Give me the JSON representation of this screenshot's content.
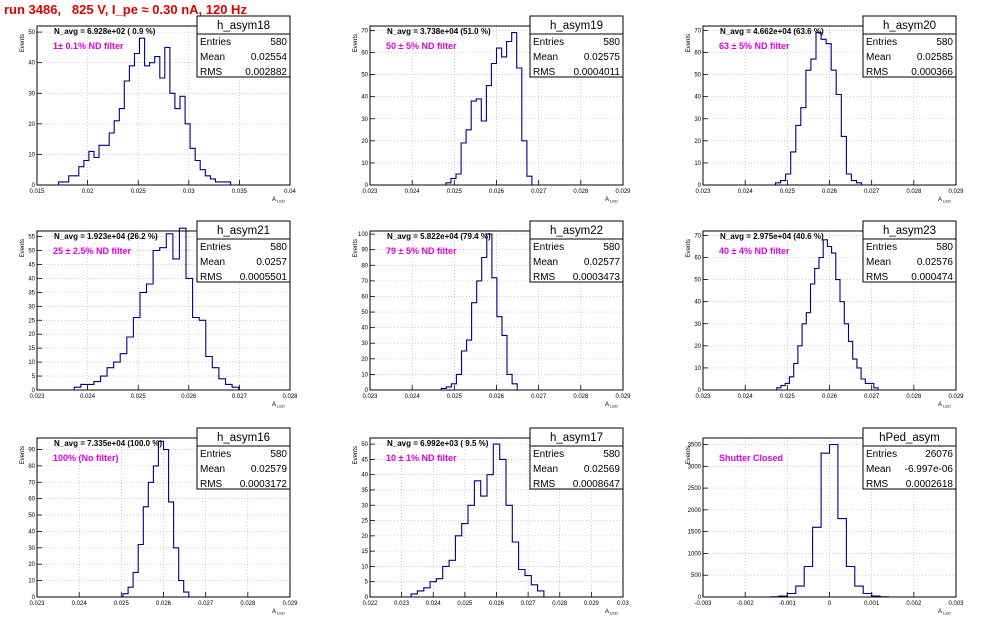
{
  "title": "run 3486,   825 V, I_pe ≈ 0.30 nA, 120 Hz",
  "colors": {
    "title": "#e00000",
    "histogram": "#00007f",
    "annotation": "#e000e0",
    "grid": "#b0b0b0"
  },
  "panel_common": {
    "ylabel": "Events",
    "xlabel": "A",
    "xlabel_sub": "LED",
    "stat_labels": [
      "Entries",
      "Mean",
      "RMS"
    ]
  },
  "chart_data": [
    {
      "type": "histogram",
      "name": "h_asym18",
      "navg": "N_avg = 6.928e+02 ( 0.9 %)",
      "filter": "1± 0.1% ND filter",
      "stats": {
        "entries": "580",
        "mean": "0.02554",
        "rms": "0.002882"
      },
      "xlim": [
        0.015,
        0.04
      ],
      "ylim": [
        0,
        52
      ],
      "xticks": [
        "0.015",
        "0.02",
        "0.025",
        "0.03",
        "0.035",
        "0.04"
      ],
      "yticks": [
        "0",
        "10",
        "20",
        "30",
        "40",
        "50"
      ],
      "bin_centers": [
        0.01738,
        0.01788,
        0.01838,
        0.01888,
        0.01938,
        0.01988,
        0.02038,
        0.02088,
        0.02138,
        0.02188,
        0.02238,
        0.02288,
        0.02338,
        0.02388,
        0.02438,
        0.02488,
        0.02538,
        0.02588,
        0.02638,
        0.02688,
        0.02738,
        0.02788,
        0.02838,
        0.02888,
        0.02938,
        0.02988,
        0.03038,
        0.03088,
        0.03138,
        0.03188,
        0.03238,
        0.03288,
        0.03338,
        0.03388
      ],
      "counts": [
        1,
        1,
        3,
        3,
        6,
        8,
        11,
        9,
        13,
        13,
        17,
        21,
        25,
        34,
        39,
        43,
        48,
        39,
        40,
        42,
        35,
        45,
        30,
        25,
        29,
        20,
        12,
        8,
        5,
        3,
        2,
        1,
        1,
        1
      ]
    },
    {
      "type": "histogram",
      "name": "h_asym19",
      "navg": "N_avg = 3.738e+04 (51.0 %)",
      "filter": "50 ± 5% ND filter",
      "stats": {
        "entries": "580",
        "mean": "0.02575",
        "rms": "0.0004011"
      },
      "xlim": [
        0.023,
        0.029
      ],
      "ylim": [
        0,
        72
      ],
      "xticks": [
        "0.023",
        "0.024",
        "0.025",
        "0.026",
        "0.027",
        "0.028",
        "0.029"
      ],
      "yticks": [
        "0",
        "10",
        "20",
        "30",
        "40",
        "50",
        "60",
        "70"
      ],
      "bin_centers": [
        0.02486,
        0.02498,
        0.0251,
        0.02522,
        0.02534,
        0.02546,
        0.02558,
        0.0257,
        0.02582,
        0.02594,
        0.02606,
        0.02618,
        0.0263,
        0.02642,
        0.02654,
        0.02666,
        0.02678
      ],
      "counts": [
        1,
        3,
        5,
        19,
        25,
        38,
        39,
        29,
        45,
        55,
        62,
        58,
        65,
        69,
        53,
        20,
        4
      ]
    },
    {
      "type": "histogram",
      "name": "h_asym20",
      "navg": "N_avg = 4.662e+04 (63.6 %)",
      "filter": "63 ± 5% ND filter",
      "stats": {
        "entries": "580",
        "mean": "0.02585",
        "rms": "0.000366"
      },
      "xlim": [
        0.023,
        0.029
      ],
      "ylim": [
        0,
        72
      ],
      "xticks": [
        "0.023",
        "0.024",
        "0.025",
        "0.026",
        "0.027",
        "0.028",
        "0.029"
      ],
      "yticks": [
        "0",
        "10",
        "20",
        "30",
        "40",
        "50",
        "60",
        "70"
      ],
      "bin_centers": [
        0.02478,
        0.0249,
        0.02502,
        0.02514,
        0.02526,
        0.02538,
        0.0255,
        0.02562,
        0.02574,
        0.02586,
        0.02598,
        0.0261,
        0.02622,
        0.02634,
        0.02646,
        0.02658,
        0.0267
      ],
      "counts": [
        1,
        2,
        5,
        15,
        27,
        35,
        52,
        57,
        69,
        66,
        64,
        52,
        41,
        22,
        5,
        2,
        1
      ]
    },
    {
      "type": "histogram",
      "name": "h_asym21",
      "navg": "N_avg = 1.923e+04 (26.2 %)",
      "filter": "25 ± 2.5% ND filter",
      "stats": {
        "entries": "580",
        "mean": "0.0257",
        "rms": "0.0005501"
      },
      "xlim": [
        0.023,
        0.028
      ],
      "ylim": [
        0,
        57
      ],
      "xticks": [
        "0.023",
        "0.024",
        "0.025",
        "0.026",
        "0.027",
        "0.028"
      ],
      "yticks": [
        "0",
        "5",
        "10",
        "15",
        "20",
        "25",
        "30",
        "35",
        "40",
        "45",
        "50",
        "55"
      ],
      "bin_centers": [
        0.0238,
        0.02393,
        0.02406,
        0.02419,
        0.02432,
        0.02445,
        0.02458,
        0.02471,
        0.02484,
        0.02497,
        0.0251,
        0.02523,
        0.02536,
        0.02549,
        0.02562,
        0.02575,
        0.02588,
        0.02601,
        0.02614,
        0.02627,
        0.0264,
        0.02653,
        0.02666,
        0.02679,
        0.02692
      ],
      "counts": [
        1,
        2,
        2,
        3,
        5,
        8,
        10,
        13,
        19,
        26,
        35,
        38,
        50,
        51,
        56,
        47,
        58,
        40,
        26,
        25,
        12,
        8,
        4,
        2,
        1
      ]
    },
    {
      "type": "histogram",
      "name": "h_asym22",
      "navg": "N_avg = 5.822e+04 (79.4 %)",
      "filter": "79 ± 5% ND filter",
      "stats": {
        "entries": "580",
        "mean": "0.02577",
        "rms": "0.0003473"
      },
      "xlim": [
        0.023,
        0.029
      ],
      "ylim": [
        0,
        102
      ],
      "xticks": [
        "0.023",
        "0.024",
        "0.025",
        "0.026",
        "0.027",
        "0.028",
        "0.029"
      ],
      "yticks": [
        "0",
        "10",
        "20",
        "30",
        "40",
        "50",
        "60",
        "70",
        "80",
        "90",
        "100"
      ],
      "bin_centers": [
        0.02475,
        0.02487,
        0.02499,
        0.02511,
        0.02523,
        0.02535,
        0.02547,
        0.02559,
        0.02571,
        0.02583,
        0.02595,
        0.02607,
        0.02619,
        0.02631,
        0.02643
      ],
      "counts": [
        1,
        2,
        4,
        10,
        25,
        32,
        56,
        70,
        85,
        100,
        72,
        47,
        35,
        10,
        4
      ]
    },
    {
      "type": "histogram",
      "name": "h_asym23",
      "navg": "N_avg = 2.975e+04 (40.6 %)",
      "filter": "40 ± 4% ND filter",
      "stats": {
        "entries": "580",
        "mean": "0.02576",
        "rms": "0.000474"
      },
      "xlim": [
        0.023,
        0.029
      ],
      "ylim": [
        0,
        72
      ],
      "xticks": [
        "0.023",
        "0.024",
        "0.025",
        "0.026",
        "0.027",
        "0.028",
        "0.029"
      ],
      "yticks": [
        "0",
        "10",
        "20",
        "30",
        "40",
        "50",
        "60",
        "70"
      ],
      "bin_centers": [
        0.0248,
        0.0249,
        0.025,
        0.0251,
        0.0252,
        0.0253,
        0.0254,
        0.0255,
        0.0256,
        0.0257,
        0.0258,
        0.0259,
        0.026,
        0.0261,
        0.0262,
        0.0263,
        0.0264,
        0.0265,
        0.0266,
        0.0267,
        0.0268,
        0.0269,
        0.027,
        0.0271
      ],
      "counts": [
        1,
        2,
        3,
        6,
        12,
        20,
        30,
        35,
        48,
        55,
        60,
        68,
        65,
        62,
        50,
        40,
        30,
        22,
        14,
        10,
        5,
        3,
        3,
        1
      ]
    },
    {
      "type": "histogram",
      "name": "h_asym16",
      "navg": "N_avg = 7.335e+04 (100.0 %)",
      "filter": "100% (No filter)",
      "stats": {
        "entries": "580",
        "mean": "0.02579",
        "rms": "0.0003172"
      },
      "xlim": [
        0.023,
        0.029
      ],
      "ylim": [
        0,
        97
      ],
      "xticks": [
        "0.023",
        "0.024",
        "0.025",
        "0.026",
        "0.027",
        "0.028",
        "0.029"
      ],
      "yticks": [
        "0",
        "10",
        "20",
        "30",
        "40",
        "50",
        "60",
        "70",
        "80",
        "90"
      ],
      "bin_centers": [
        0.0251,
        0.02522,
        0.02534,
        0.02546,
        0.02558,
        0.0257,
        0.02582,
        0.02594,
        0.02606,
        0.02618,
        0.0263,
        0.02642,
        0.02654
      ],
      "counts": [
        2,
        6,
        15,
        32,
        55,
        70,
        80,
        95,
        90,
        58,
        30,
        10,
        3
      ]
    },
    {
      "type": "histogram",
      "name": "h_asym17",
      "navg": "N_avg = 6.992e+03 ( 9.5 %)",
      "filter": "10 ± 1% ND filter",
      "stats": {
        "entries": "580",
        "mean": "0.02569",
        "rms": "0.0008647"
      },
      "xlim": [
        0.022,
        0.03
      ],
      "ylim": [
        0,
        52
      ],
      "xticks": [
        "0.022",
        "0.023",
        "0.024",
        "0.025",
        "0.026",
        "0.027",
        "0.028",
        "0.029",
        "0.03"
      ],
      "yticks": [
        "0",
        "5",
        "10",
        "15",
        "20",
        "25",
        "30",
        "35",
        "40",
        "45",
        "50"
      ],
      "bin_centers": [
        0.0234,
        0.0236,
        0.0238,
        0.024,
        0.0242,
        0.0244,
        0.0246,
        0.0248,
        0.025,
        0.0252,
        0.0254,
        0.0256,
        0.0258,
        0.026,
        0.0262,
        0.0264,
        0.0266,
        0.0268,
        0.027,
        0.0272,
        0.0274
      ],
      "counts": [
        1,
        2,
        3,
        5,
        6,
        10,
        12,
        20,
        24,
        30,
        38,
        33,
        40,
        50,
        45,
        30,
        18,
        9,
        7,
        4,
        2
      ]
    },
    {
      "type": "histogram",
      "name": "hPed_asym",
      "navg": "",
      "filter": "Shutter Closed",
      "stats": {
        "entries": "26076",
        "mean": "-6.997e-06",
        "rms": "0.0002618"
      },
      "xlim": [
        -0.003,
        0.003
      ],
      "ylim": [
        0,
        3650
      ],
      "xticks": [
        "-0.003",
        "-0.002",
        "-0.001",
        "0",
        "0.001",
        "0.002",
        "0.003"
      ],
      "yticks": [
        "0",
        "500",
        "1000",
        "1500",
        "2000",
        "2500",
        "3000",
        "3500"
      ],
      "bin_centers": [
        -0.0013,
        -0.0011,
        -0.0009,
        -0.0007,
        -0.0005,
        -0.0003,
        -0.0001,
        0.0001,
        0.0003,
        0.0005,
        0.0007,
        0.0009,
        0.0011,
        0.0013
      ],
      "counts": [
        5,
        20,
        80,
        250,
        700,
        1600,
        3300,
        3500,
        1800,
        700,
        250,
        80,
        20,
        5
      ]
    }
  ]
}
